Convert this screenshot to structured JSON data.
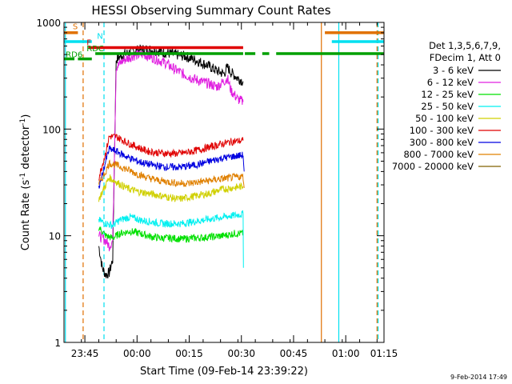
{
  "chart_data": {
    "type": "line",
    "title": "HESSI Observing Summary Count Rates",
    "xlabel": "Start Time (09-Feb-14 23:39:22)",
    "ylabel_main": "Count Rate (s",
    "ylabel_sup1": "-1",
    "ylabel_mid": " detector",
    "ylabel_sup2": "-1",
    "ylabel_end": ")",
    "yscale": "log",
    "ylim": [
      1,
      1000
    ],
    "xlim_minutes": [
      -10,
      82
    ],
    "y_ticks": [
      {
        "v": 1,
        "label": "1"
      },
      {
        "v": 10,
        "label": "10"
      },
      {
        "v": 100,
        "label": "100"
      },
      {
        "v": 1000,
        "label": "1000"
      }
    ],
    "x_ticks": [
      {
        "m": -4,
        "label": "23:45"
      },
      {
        "m": 11,
        "label": "00:00"
      },
      {
        "m": 26,
        "label": "00:15"
      },
      {
        "m": 41,
        "label": "00:30"
      },
      {
        "m": 56,
        "label": "00:45"
      },
      {
        "m": 71,
        "label": "01:00"
      },
      {
        "m": 86,
        "label": "01:15"
      }
    ],
    "legend": {
      "header1": "Det 1,3,5,6,7,9,",
      "header2": "FDecim 1, Att 0",
      "placement": "right"
    },
    "series": [
      {
        "name": "3 - 6 keV",
        "color": "#000000",
        "points": [
          [
            0,
            8
          ],
          [
            1,
            5
          ],
          [
            2,
            4.3
          ],
          [
            3,
            4.5
          ],
          [
            4,
            6
          ],
          [
            5,
            450
          ],
          [
            7,
            500
          ],
          [
            10,
            540
          ],
          [
            13,
            560
          ],
          [
            16,
            550
          ],
          [
            19,
            520
          ],
          [
            22,
            500
          ],
          [
            25,
            480
          ],
          [
            28,
            440
          ],
          [
            31,
            400
          ],
          [
            34,
            350
          ],
          [
            36,
            330
          ],
          [
            37,
            380
          ],
          [
            38,
            340
          ],
          [
            40,
            300
          ],
          [
            41.5,
            280
          ]
        ]
      },
      {
        "name": "6 - 12 keV",
        "color": "#e020e0",
        "points": [
          [
            0,
            10
          ],
          [
            2,
            9
          ],
          [
            3,
            8
          ],
          [
            4,
            9
          ],
          [
            5,
            380
          ],
          [
            7,
            440
          ],
          [
            10,
            490
          ],
          [
            13,
            500
          ],
          [
            16,
            460
          ],
          [
            19,
            420
          ],
          [
            22,
            360
          ],
          [
            25,
            320
          ],
          [
            28,
            290
          ],
          [
            31,
            270
          ],
          [
            34,
            250
          ],
          [
            36,
            280
          ],
          [
            37,
            300
          ],
          [
            38,
            230
          ],
          [
            40,
            190
          ],
          [
            41.5,
            180
          ]
        ]
      },
      {
        "name": "12 - 25 keV",
        "color": "#00e000",
        "points": [
          [
            0,
            12
          ],
          [
            2,
            10
          ],
          [
            4,
            9.5
          ],
          [
            6,
            10.5
          ],
          [
            9,
            11
          ],
          [
            12,
            10.5
          ],
          [
            15,
            9.8
          ],
          [
            18,
            9.5
          ],
          [
            21,
            9.5
          ],
          [
            24,
            9.3
          ],
          [
            27,
            9.5
          ],
          [
            30,
            9.6
          ],
          [
            33,
            9.8
          ],
          [
            36,
            10
          ],
          [
            39,
            10.5
          ],
          [
            41.5,
            10.5
          ]
        ]
      },
      {
        "name": "25 - 50 keV",
        "color": "#00f0f0",
        "points": [
          [
            0,
            14
          ],
          [
            2,
            13
          ],
          [
            4,
            12.5
          ],
          [
            6,
            14
          ],
          [
            9,
            15
          ],
          [
            12,
            14
          ],
          [
            15,
            13.5
          ],
          [
            18,
            13
          ],
          [
            21,
            13
          ],
          [
            24,
            13
          ],
          [
            27,
            13.5
          ],
          [
            30,
            14
          ],
          [
            33,
            14.5
          ],
          [
            36,
            15
          ],
          [
            39,
            15.5
          ],
          [
            41.5,
            16
          ],
          [
            41.6,
            5
          ]
        ]
      },
      {
        "name": "50 - 100 keV",
        "color": "#d0d000",
        "points": [
          [
            0,
            22
          ],
          [
            2,
            30
          ],
          [
            3,
            35
          ],
          [
            5,
            32
          ],
          [
            8,
            28
          ],
          [
            11,
            26
          ],
          [
            14,
            25
          ],
          [
            17,
            24
          ],
          [
            20,
            23
          ],
          [
            23,
            22
          ],
          [
            26,
            23
          ],
          [
            29,
            24
          ],
          [
            32,
            25
          ],
          [
            35,
            27
          ],
          [
            38,
            28
          ],
          [
            41.5,
            29
          ]
        ]
      },
      {
        "name": "100 - 300 keV",
        "color": "#e00000",
        "points": [
          [
            0,
            35
          ],
          [
            2,
            60
          ],
          [
            3,
            85
          ],
          [
            5,
            85
          ],
          [
            8,
            75
          ],
          [
            11,
            68
          ],
          [
            14,
            62
          ],
          [
            17,
            60
          ],
          [
            20,
            59
          ],
          [
            23,
            59
          ],
          [
            26,
            61
          ],
          [
            29,
            64
          ],
          [
            32,
            68
          ],
          [
            35,
            72
          ],
          [
            38,
            76
          ],
          [
            41.5,
            78
          ]
        ]
      },
      {
        "name": "300 - 800 keV",
        "color": "#0000e0",
        "points": [
          [
            0,
            28
          ],
          [
            2,
            50
          ],
          [
            3,
            65
          ],
          [
            5,
            62
          ],
          [
            8,
            55
          ],
          [
            11,
            50
          ],
          [
            14,
            47
          ],
          [
            17,
            45
          ],
          [
            20,
            44
          ],
          [
            23,
            44
          ],
          [
            26,
            45
          ],
          [
            29,
            47
          ],
          [
            32,
            50
          ],
          [
            35,
            53
          ],
          [
            38,
            55
          ],
          [
            41.5,
            57
          ],
          [
            41.8,
            40
          ]
        ]
      },
      {
        "name": "800 - 7000 keV",
        "color": "#e08000",
        "points": [
          [
            0,
            30
          ],
          [
            2,
            40
          ],
          [
            3,
            48
          ],
          [
            5,
            46
          ],
          [
            8,
            42
          ],
          [
            11,
            38
          ],
          [
            14,
            35
          ],
          [
            17,
            33
          ],
          [
            20,
            32
          ],
          [
            23,
            31
          ],
          [
            26,
            31
          ],
          [
            29,
            32
          ],
          [
            32,
            33
          ],
          [
            35,
            34
          ],
          [
            38,
            35
          ],
          [
            41.5,
            36
          ],
          [
            41.8,
            28
          ]
        ]
      },
      {
        "name": "7000 - 20000 keV",
        "color": "#806000",
        "points": []
      }
    ],
    "flags": [
      {
        "label": "S",
        "color": "#e07000",
        "y": 800,
        "segments": [
          [
            -10,
            -6
          ],
          [
            65,
            82
          ]
        ]
      },
      {
        "label": "N",
        "color": "#00e0f0",
        "y": 660,
        "segments": [
          [
            -10,
            -2
          ],
          [
            67,
            82
          ]
        ]
      },
      {
        "label": "F",
        "color": "#e00000",
        "y": 580,
        "segments": [
          [
            -3,
            41.5
          ]
        ]
      },
      {
        "label": "RDC",
        "color": "#00a000",
        "y": 510,
        "segments": [
          [
            -1,
            41.5
          ],
          [
            42,
            45
          ],
          [
            47,
            49
          ],
          [
            51,
            82
          ]
        ]
      },
      {
        "label": "RD6",
        "color": "#00a000",
        "y": 455,
        "segments": [
          [
            -10,
            -7
          ],
          [
            -6,
            -2
          ]
        ]
      }
    ],
    "vlines": [
      {
        "m": -9.6,
        "color": "#00e0f0",
        "style": "solid"
      },
      {
        "m": -4.5,
        "color": "#e07000",
        "style": "dashed"
      },
      {
        "m": 1.5,
        "color": "#00e0f0",
        "style": "dashed"
      },
      {
        "m": 64,
        "color": "#e07000",
        "style": "solid"
      },
      {
        "m": 69,
        "color": "#00e0f0",
        "style": "solid"
      },
      {
        "m": 80,
        "color": "#e07000",
        "style": "dashed"
      },
      {
        "m": 80.3,
        "color": "#00e0f0",
        "style": "dashed"
      }
    ],
    "grid": false
  },
  "footer_date": "9-Feb-2014 17:49"
}
